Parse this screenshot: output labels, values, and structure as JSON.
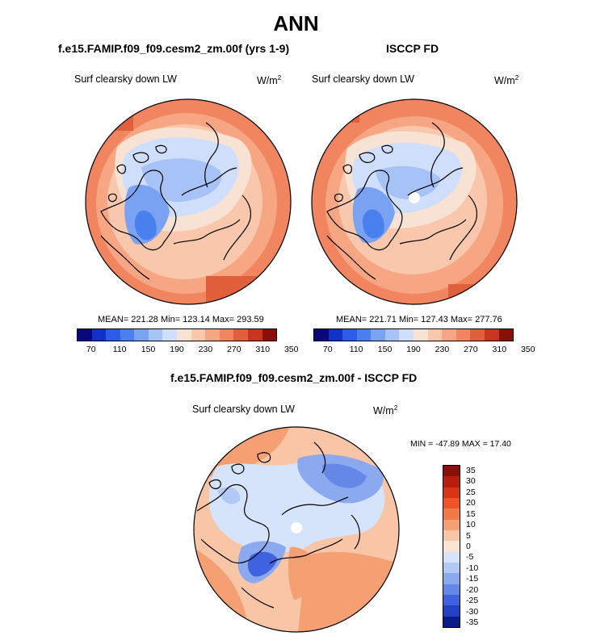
{
  "title": "ANN",
  "panels": [
    {
      "header": "f.e15.FAMIP.f09_f09.cesm2_zm.00f (yrs 1-9)",
      "variable": "Surf clearsky down LW",
      "units_base": "W/m",
      "units_exp": "2",
      "stats": "MEAN= 221.28  Min= 123.14  Max= 293.59",
      "colorbar_labels": [
        "70",
        "110",
        "150",
        "190",
        "230",
        "270",
        "310",
        "350"
      ]
    },
    {
      "header": "ISCCP FD",
      "variable": "Surf clearsky down LW",
      "units_base": "W/m",
      "units_exp": "2",
      "stats": "MEAN= 221.71  Min= 127.43  Max= 277.76",
      "colorbar_labels": [
        "70",
        "110",
        "150",
        "190",
        "230",
        "270",
        "310",
        "350"
      ]
    }
  ],
  "diff_panel": {
    "header": "f.e15.FAMIP.f09_f09.cesm2_zm.00f - ISCCP FD",
    "variable": "Surf clearsky down LW",
    "units_base": "W/m",
    "units_exp": "2",
    "stats": "MIN = -47.89 MAX =  17.40",
    "colorbar_labels": [
      "35",
      "30",
      "25",
      "20",
      "15",
      "10",
      "5",
      "0",
      "-5",
      "-10",
      "-15",
      "-20",
      "-25",
      "-30",
      "-35"
    ]
  },
  "colors": {
    "abs_scale": [
      "#08087a",
      "#1030c8",
      "#2a5ce6",
      "#4a80ee",
      "#7aa2f2",
      "#a6c2f6",
      "#cfdffb",
      "#f7e2d3",
      "#f9c8ac",
      "#f6a682",
      "#f08560",
      "#e0603c",
      "#c8361f",
      "#8a0f08"
    ],
    "diff_scale": [
      "#8a0f08",
      "#b81e10",
      "#d83418",
      "#ee5428",
      "#f27a48",
      "#f5a072",
      "#f8c6a6",
      "#fbe3d3",
      "#d6e4fb",
      "#b2c9f6",
      "#8aa9ee",
      "#6487e8",
      "#3f62e0",
      "#2440c4",
      "#0c1c86"
    ]
  }
}
